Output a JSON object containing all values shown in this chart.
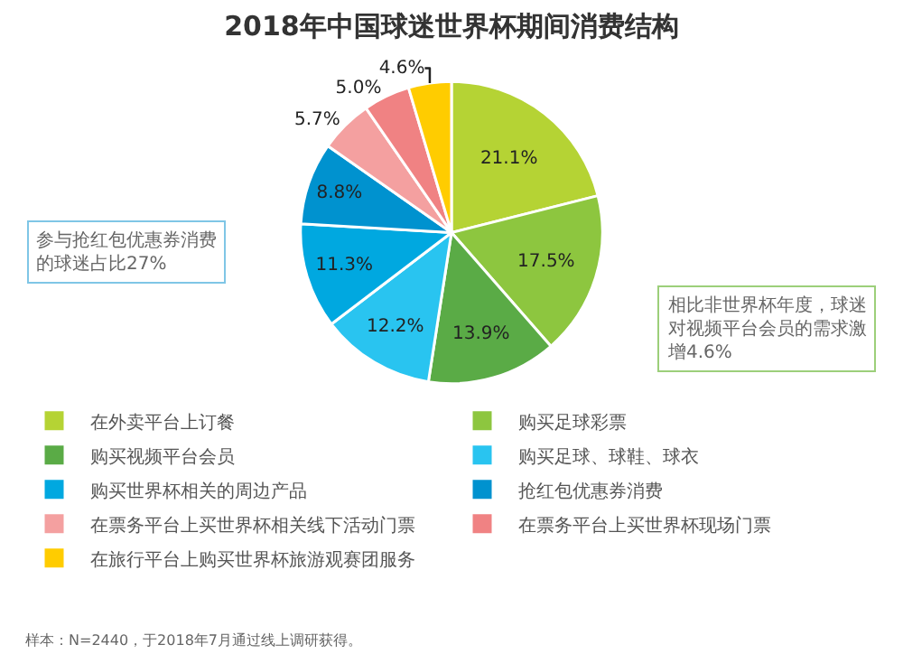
{
  "chart_data": {
    "type": "pie",
    "title": "2018年中国球迷世界杯期间消费结构",
    "categories": [
      "在外卖平台上订餐",
      "购买足球彩票",
      "购买视频平台会员",
      "购买足球、球鞋、球衣",
      "购买世界杯相关的周边产品",
      "抢红包优惠券消费",
      "在票务平台上买世界杯相关线下活动门票",
      "在票务平台上买世界杯现场门票",
      "在旅行平台上购买世界杯旅游观赛团服务"
    ],
    "values": [
      21.1,
      17.5,
      13.9,
      12.2,
      11.3,
      8.8,
      5.7,
      5.0,
      4.6
    ],
    "value_labels": [
      "21.1%",
      "17.5%",
      "13.9%",
      "12.2%",
      "11.3%",
      "8.8%",
      "5.7%",
      "5.0%",
      "4.6%"
    ],
    "colors": [
      "#b5d334",
      "#8dc63f",
      "#5aab46",
      "#29c4f0",
      "#00a8e0",
      "#0092cf",
      "#f4a0a0",
      "#f08283",
      "#ffcc00"
    ],
    "legend": "bottom",
    "annotations": [
      "参与抢红包优惠券消费的球迷占比27%",
      "相比非世界杯年度，球迷对视频平台会员的需求激增4.6%",
      "样本：N=2440，于2018年7月通过线上调研获得。"
    ]
  }
}
